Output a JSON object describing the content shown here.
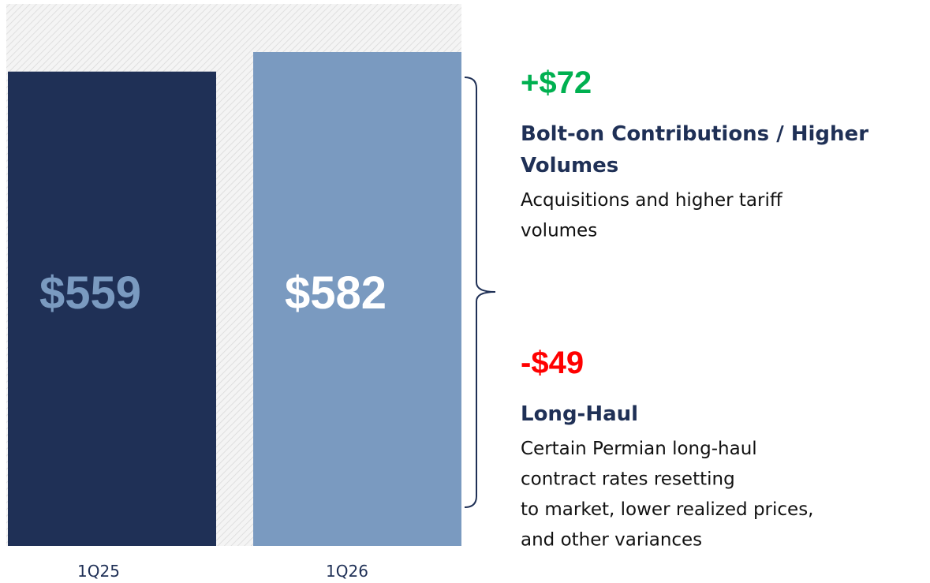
{
  "chart_data": {
    "type": "bar",
    "categories": [
      "1Q25",
      "1Q26"
    ],
    "values": [
      559,
      582
    ],
    "value_labels": [
      "$559",
      "$582"
    ],
    "colors": [
      "#1f3056",
      "#7a9ac0"
    ],
    "annotations": [
      {
        "delta": "+$72",
        "color": "#00b050",
        "heading": [
          "Bolt-on Contributions / Higher",
          "Volumes"
        ],
        "text": [
          "Acquisitions and higher tariff",
          "volumes"
        ]
      },
      {
        "delta": "-$49",
        "color": "#ff0000",
        "heading": [
          "Long-Haul"
        ],
        "text": [
          "Certain Permian long-haul",
          "contract rates resetting",
          "to market, lower realized prices,",
          "and other variances"
        ]
      }
    ]
  }
}
